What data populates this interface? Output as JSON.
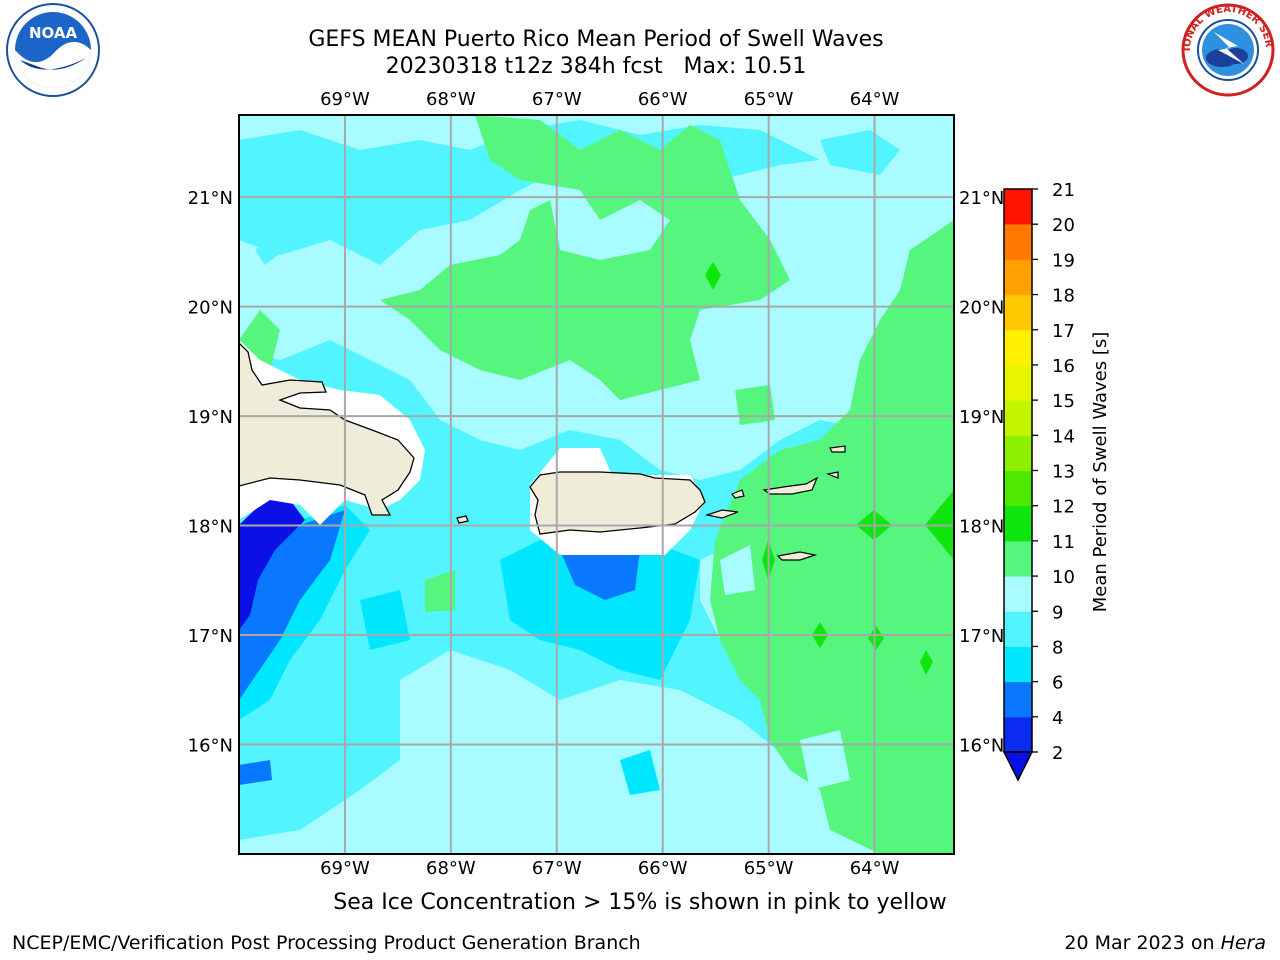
{
  "header": {
    "title_line1": "GEFS MEAN Puerto Rico Mean Period of Swell Waves",
    "title_line2": "20230318 t12z 384h fcst   Max: 10.51"
  },
  "logos": {
    "left": "noaa-logo",
    "left_text": "NOAA",
    "right": "nws-logo",
    "right_text": "NATIONAL WEATHER SERVICE"
  },
  "map": {
    "lon_labels_top": [
      "69°W",
      "68°W",
      "67°W",
      "66°W",
      "65°W",
      "64°W"
    ],
    "lon_labels_bottom": [
      "69°W",
      "68°W",
      "67°W",
      "66°W",
      "65°W",
      "64°W"
    ],
    "lat_labels_left": [
      "21°N",
      "20°N",
      "19°N",
      "18°N",
      "17°N",
      "16°N"
    ],
    "lat_labels_right": [
      "21°N",
      "20°N",
      "19°N",
      "18°N",
      "17°N",
      "16°N"
    ],
    "lon_values": [
      -69,
      -68,
      -67,
      -66,
      -65,
      -64
    ],
    "lat_values": [
      21,
      20,
      19,
      18,
      17,
      16
    ],
    "lon_range": [
      -70,
      -63.25
    ],
    "lat_range": [
      15,
      21.75
    ],
    "grid": true
  },
  "colorbar": {
    "label": "Mean Period of Swell Waves [s]",
    "ticks": [
      "2",
      "4",
      "6",
      "8",
      "9",
      "10",
      "11",
      "12",
      "13",
      "14",
      "15",
      "16",
      "17",
      "18",
      "19",
      "20",
      "21"
    ],
    "colors": [
      "#0a2bf0",
      "#0a77ff",
      "#00e6ff",
      "#52f5ff",
      "#a8fcff",
      "#55f57e",
      "#0ee60e",
      "#4ee800",
      "#8cf000",
      "#c3f500",
      "#e6f500",
      "#fff000",
      "#ffc800",
      "#ffa000",
      "#ff7800",
      "#ff4600",
      "#ff1400"
    ],
    "extend": "min",
    "under_color": "#0a10e6"
  },
  "notes": {
    "ice": "Sea Ice Concentration > 15% is shown in pink to yellow"
  },
  "footer": {
    "left": "NCEP/EMC/Verification Post Processing Product Generation Branch",
    "right_date": "20 Mar 2023 on ",
    "right_machine": "Hera"
  },
  "palette": {
    "land": "#efedda",
    "grid": "#a8a8a8",
    "band_4_6": "#00e6ff",
    "band_6_8": "#52f5ff",
    "band_8_9": "#a8fcff",
    "band_9_10": "#55f57e",
    "band_10_11": "#0ee60e",
    "band_2_4": "#0a77ff",
    "band_under": "#0a10e6"
  }
}
